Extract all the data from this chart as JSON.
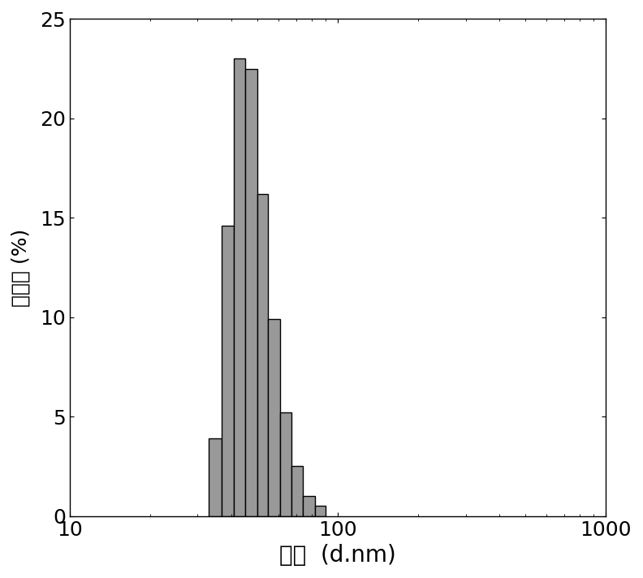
{
  "title": "",
  "xlabel": "粒径  (d.nm)",
  "ylabel": "百分比 (%)",
  "bar_color": "#999999",
  "bar_edgecolor": "#000000",
  "bar_linewidth": 1.0,
  "background_color": "#ffffff",
  "xlim": [
    10,
    1000
  ],
  "ylim": [
    0,
    25
  ],
  "yticks": [
    0,
    5,
    10,
    15,
    20,
    25
  ],
  "bin_left": [
    27,
    30,
    33,
    37,
    41,
    45,
    50,
    55,
    61,
    67,
    74,
    82,
    90,
    100,
    110
  ],
  "bin_right": [
    30,
    33,
    37,
    41,
    45,
    50,
    55,
    61,
    67,
    74,
    82,
    90,
    100,
    110,
    122
  ],
  "bar_heights": [
    0.0,
    0.0,
    3.9,
    14.6,
    23.0,
    22.5,
    16.2,
    9.9,
    5.2,
    2.5,
    1.0,
    0.5,
    0.0,
    0.0,
    0.0
  ],
  "xlabel_fontsize": 20,
  "ylabel_fontsize": 18,
  "tick_fontsize": 18
}
